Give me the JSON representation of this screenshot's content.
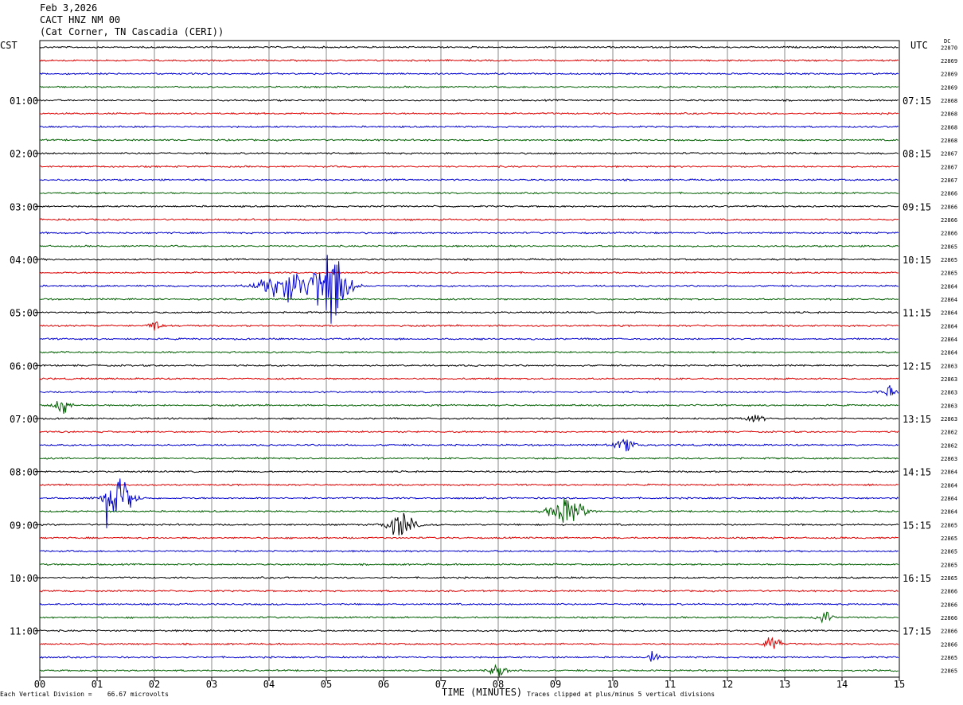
{
  "header": {
    "date": "Feb 3,2026",
    "station": "CACT HNZ NM 00",
    "location": "(Cat Corner, TN Cascadia (CERI))"
  },
  "left_zone_label": "CST",
  "right_zone_label": "UTC",
  "dc_label": "DC",
  "footer": {
    "division_note": "Each Vertical Division =    66.67 microvolts",
    "time_label": "TIME (MINUTES)",
    "clip_note": "Traces clipped at plus/minus 5 vertical divisions"
  },
  "chart_data": {
    "type": "line",
    "xlabel": "TIME (MINUTES)",
    "xlim": [
      0,
      15
    ],
    "x_ticks": [
      "00",
      "01",
      "02",
      "03",
      "04",
      "05",
      "06",
      "07",
      "08",
      "09",
      "10",
      "11",
      "12",
      "13",
      "14",
      "15"
    ],
    "trace_colors": [
      "#000000",
      "#e00000",
      "#0000d0",
      "#006000"
    ],
    "num_traces": 48,
    "left_hour_labels": [
      "01:00",
      "02:00",
      "03:00",
      "04:00",
      "05:00",
      "06:00",
      "07:00",
      "08:00",
      "09:00",
      "10:00",
      "11:00"
    ],
    "right_hour_labels": [
      "07:15",
      "08:15",
      "09:15",
      "10:15",
      "11:15",
      "12:15",
      "13:15",
      "14:15",
      "15:15",
      "16:15",
      "17:15"
    ],
    "hour_label_first_trace": 4,
    "hour_label_every": 4,
    "dc_values": [
      "22870",
      "22869",
      "22869",
      "22869",
      "22868",
      "22868",
      "22868",
      "22868",
      "22867",
      "22867",
      "22867",
      "22866",
      "22866",
      "22866",
      "22866",
      "22865",
      "22865",
      "22865",
      "22864",
      "22864",
      "22864",
      "22864",
      "22864",
      "22864",
      "22863",
      "22863",
      "22863",
      "22863",
      "22863",
      "22862",
      "22862",
      "22863",
      "22864",
      "22864",
      "22864",
      "22864",
      "22865",
      "22865",
      "22865",
      "22865",
      "22865",
      "22866",
      "22866",
      "22866",
      "22866",
      "22866",
      "22865",
      "22865"
    ],
    "events": [
      {
        "trace": 18,
        "minute": 4.3,
        "amp": 1.4,
        "width": 0.9
      },
      {
        "trace": 18,
        "minute": 5.1,
        "amp": 3.2,
        "width": 0.6
      },
      {
        "trace": 34,
        "minute": 1.4,
        "amp": 1.8,
        "width": 0.5
      },
      {
        "trace": 35,
        "minute": 9.2,
        "amp": 1.3,
        "width": 0.6
      },
      {
        "trace": 36,
        "minute": 6.3,
        "amp": 1.1,
        "width": 0.5
      },
      {
        "trace": 21,
        "minute": 2.0,
        "amp": 0.7,
        "width": 0.2
      },
      {
        "trace": 27,
        "minute": 0.4,
        "amp": 0.7,
        "width": 0.3
      },
      {
        "trace": 26,
        "minute": 14.8,
        "amp": 0.5,
        "width": 0.3
      },
      {
        "trace": 45,
        "minute": 12.8,
        "amp": 0.7,
        "width": 0.3
      },
      {
        "trace": 47,
        "minute": 8.0,
        "amp": 0.6,
        "width": 0.3
      },
      {
        "trace": 43,
        "minute": 13.7,
        "amp": 0.6,
        "width": 0.3
      },
      {
        "trace": 30,
        "minute": 10.2,
        "amp": 0.5,
        "width": 0.4
      },
      {
        "trace": 28,
        "minute": 12.5,
        "amp": 0.4,
        "width": 0.3
      },
      {
        "trace": 46,
        "minute": 10.7,
        "amp": 0.5,
        "width": 0.2
      }
    ]
  }
}
